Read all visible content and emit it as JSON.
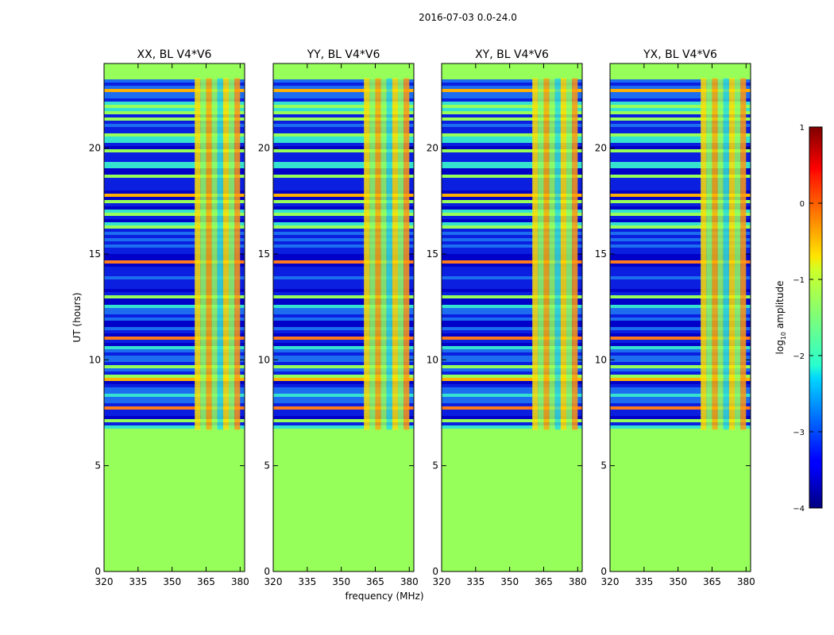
{
  "figure_title": "2016-07-03 0.0-24.0",
  "chart_data": {
    "type": "heatmap",
    "suptitle": "2016-07-03 0.0-24.0",
    "xlabel": "frequency (MHz)",
    "ylabel": "UT (hours)",
    "xlim": [
      320,
      382
    ],
    "ylim": [
      0,
      24
    ],
    "xticks": [
      320,
      335,
      350,
      365,
      380
    ],
    "yticks": [
      0,
      5,
      10,
      15,
      20
    ],
    "panels": [
      {
        "title": "XX, BL V4*V6"
      },
      {
        "title": "YY, BL V4*V6"
      },
      {
        "title": "XY, BL V4*V6"
      },
      {
        "title": "YX, BL V4*V6"
      }
    ],
    "flagged_below_hours": 6.7,
    "flagged_above_hours": 23.3,
    "rfi_band_mhz": [
      360,
      380
    ],
    "colorbar": {
      "label_prefix": "log",
      "label_sub": "10",
      "label_suffix": " amplitude",
      "range": [
        -4,
        1
      ],
      "ticks": [
        -4,
        -3,
        -2,
        -1,
        0,
        1
      ],
      "tick_labels": [
        "−4",
        "−3",
        "−2",
        "−1",
        "0",
        "1"
      ],
      "colormap": "jet"
    }
  }
}
